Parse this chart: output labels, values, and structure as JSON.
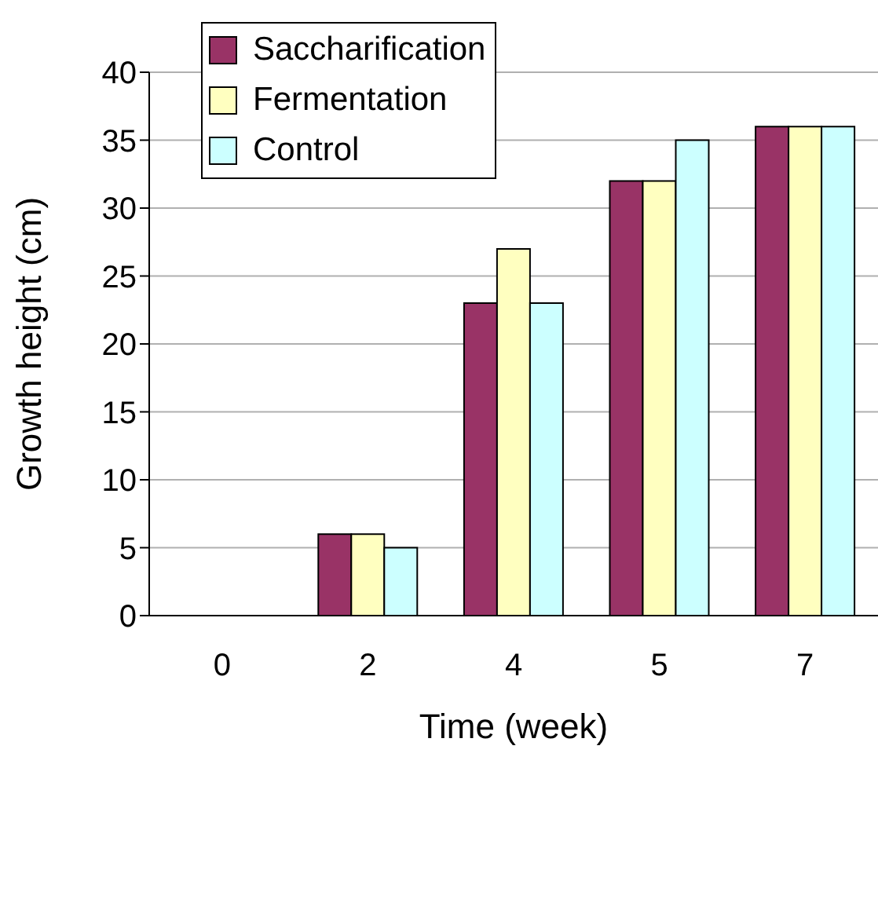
{
  "chart_data": {
    "type": "bar",
    "xlabel": "Time (week)",
    "ylabel": "Growth height (cm)",
    "categories": [
      "0",
      "2",
      "4",
      "5",
      "7"
    ],
    "series": [
      {
        "name": "Saccharification",
        "color": "#993366",
        "values": [
          0,
          6,
          23,
          32,
          36
        ]
      },
      {
        "name": "Fermentation",
        "color": "#ffffc0",
        "values": [
          0,
          6,
          27,
          32,
          36
        ]
      },
      {
        "name": "Control",
        "color": "#ccffff",
        "values": [
          0,
          5,
          23,
          35,
          36
        ]
      }
    ],
    "ylim": [
      0,
      40
    ],
    "yticks": [
      0,
      5,
      10,
      15,
      20,
      25,
      30,
      35,
      40
    ],
    "grid": "y",
    "legend": "top left"
  }
}
